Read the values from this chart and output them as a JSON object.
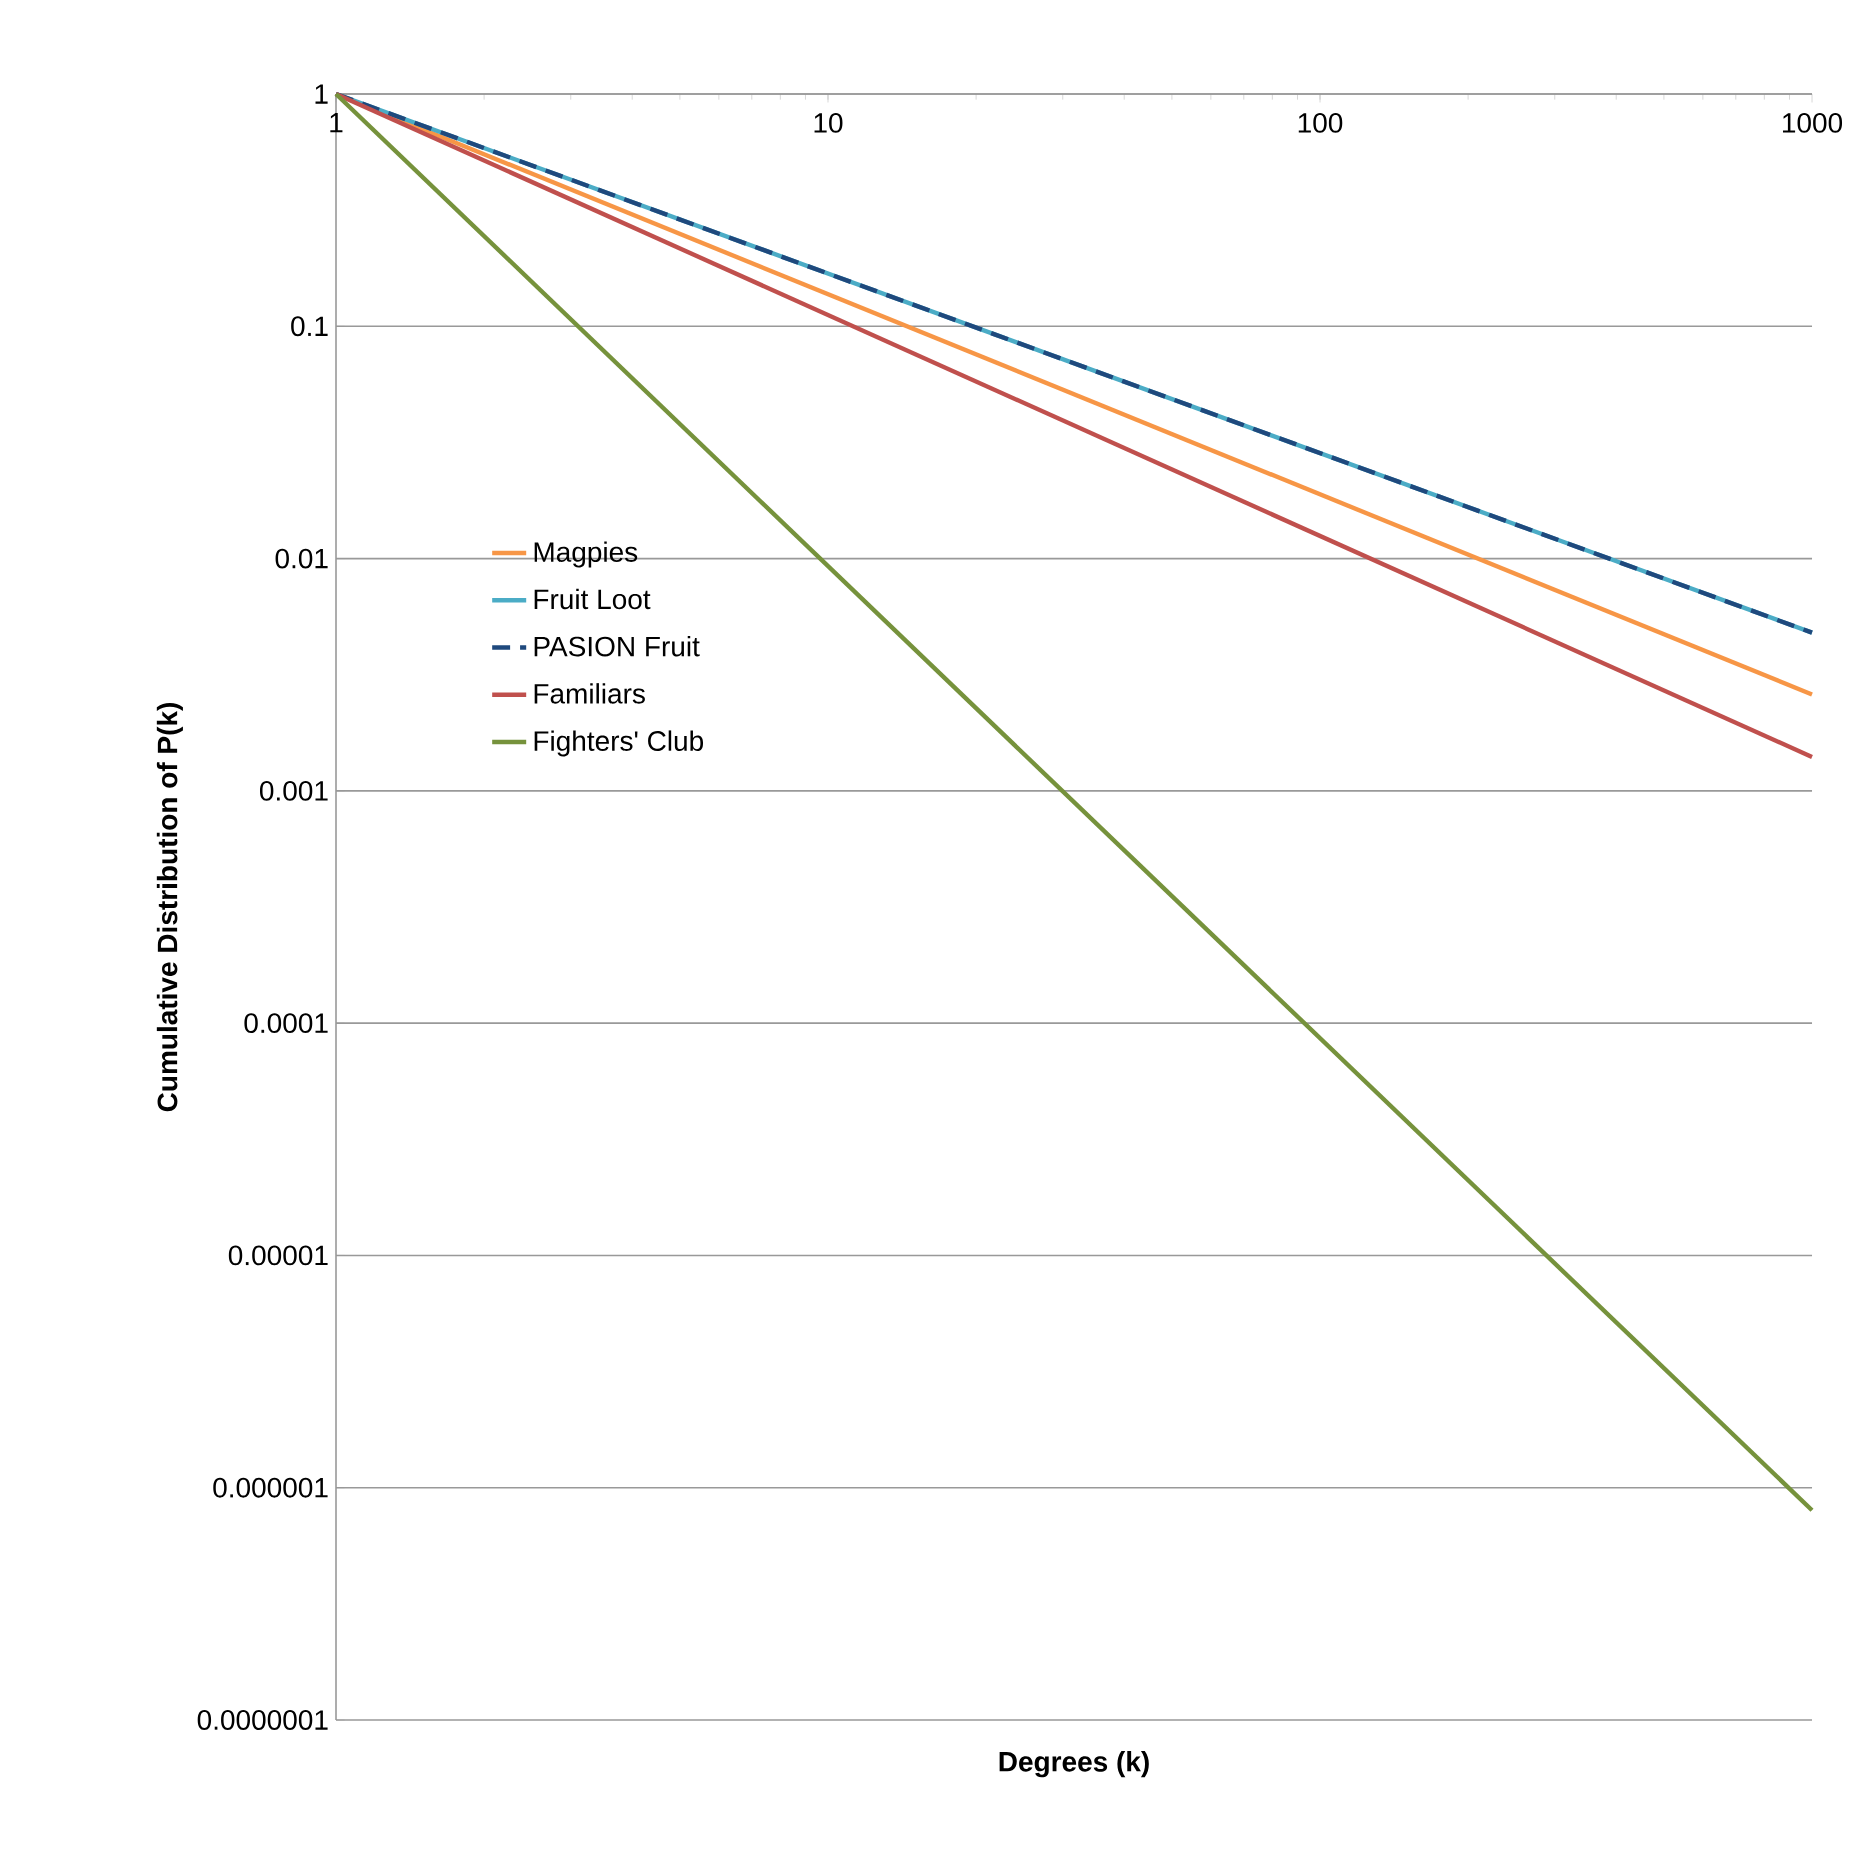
{
  "chart_data": {
    "type": "line",
    "xlabel": "Degrees (k)",
    "ylabel": "Cumulative Distribution of P(k)",
    "log": "xy",
    "grid": "y",
    "legend": "left",
    "marker": "none",
    "x": [
      1,
      1000
    ],
    "xlim": [
      1,
      1000
    ],
    "xticks": [
      1,
      10,
      100,
      1000
    ],
    "ylim": [
      1e-07,
      1
    ],
    "yticks": [
      {
        "value": 1,
        "label": "1"
      },
      {
        "value": 0.1,
        "label": "0.1"
      },
      {
        "value": 0.01,
        "label": "0.01"
      },
      {
        "value": 0.001,
        "label": "0.001"
      },
      {
        "value": 0.0001,
        "label": "0.0001"
      },
      {
        "value": 1e-05,
        "label": "0.00001"
      },
      {
        "value": 1e-06,
        "label": "0.000001"
      },
      {
        "value": 1e-07,
        "label": "0.0000001"
      }
    ],
    "series": [
      {
        "name": "Magpies",
        "color": "#f79646",
        "values": [
          1,
          0.0026
        ],
        "line_style": "solid"
      },
      {
        "name": "Fruit Loot",
        "color": "#4bacc6",
        "values": [
          1,
          0.0048
        ],
        "line_style": "solid"
      },
      {
        "name": "PASION Fruit",
        "color": "#1f497d",
        "values": [
          1,
          0.0048
        ],
        "line_style": "dashed"
      },
      {
        "name": "Familiars",
        "color": "#c0504d",
        "values": [
          1,
          0.0014
        ],
        "line_style": "solid"
      },
      {
        "name": "Fighters' Club",
        "color": "#76923c",
        "values": [
          1,
          8e-07
        ],
        "line_style": "solid"
      }
    ]
  }
}
